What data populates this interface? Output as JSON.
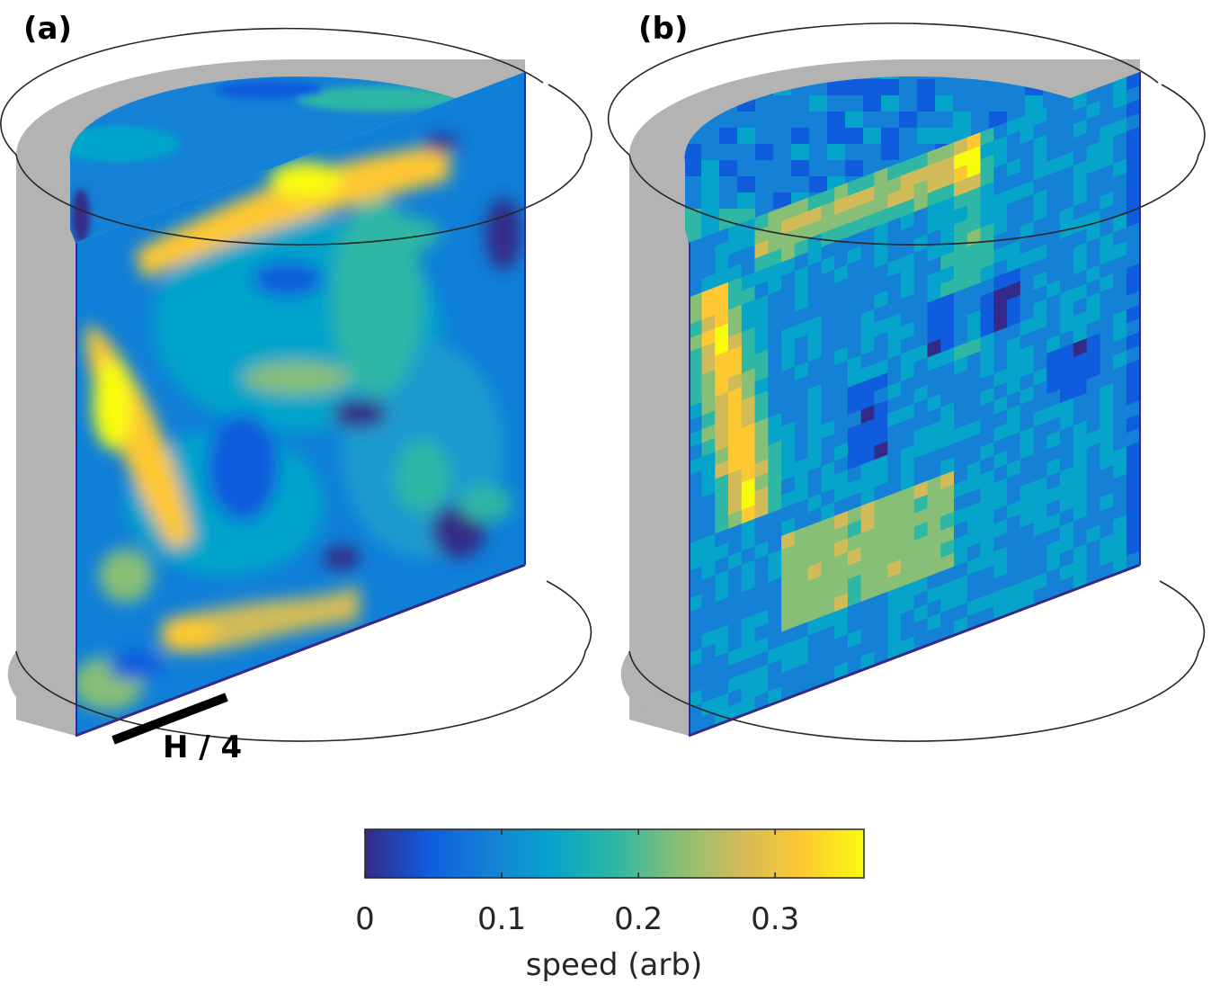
{
  "panels": [
    {
      "label": "(a)",
      "description_scale_bar": "H / 4"
    },
    {
      "label": "(b)"
    }
  ],
  "colorbar": {
    "ticks": [
      "0",
      "0.1",
      "0.2",
      "0.3"
    ],
    "tick_values": [
      0,
      0.1,
      0.2,
      0.3
    ],
    "range": [
      0,
      0.365
    ],
    "label": "speed (arb)",
    "colormap": "parula",
    "colors": [
      "#352a87",
      "#0f5cdd",
      "#1481d6",
      "#06a4ca",
      "#2eb7a4",
      "#87bf77",
      "#d1bb59",
      "#fec832",
      "#f9fb0e"
    ]
  },
  "colors": {
    "cylinder_wall": "#b3b3b3",
    "outline": "#262626",
    "scale_bar": "#000000"
  }
}
